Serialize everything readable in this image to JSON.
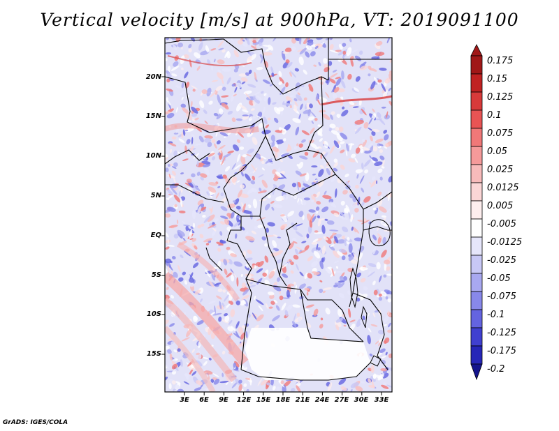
{
  "title": "Vertical velocity [m/s] at 900hPa, VT: 2019091100",
  "credit": "GrADS: IGES/COLA",
  "lat_labels": [
    "20N",
    "15N",
    "10N",
    "5N",
    "EQ",
    "5S",
    "10S",
    "15S"
  ],
  "lon_labels": [
    "3E",
    "6E",
    "9E",
    "12E",
    "15E",
    "18E",
    "21E",
    "24E",
    "27E",
    "30E",
    "33E"
  ],
  "colorbar": {
    "labels": [
      "0.175",
      "0.15",
      "0.125",
      "0.1",
      "0.075",
      "0.05",
      "0.025",
      "0.0125",
      "0.005",
      "-0.005",
      "-0.0125",
      "-0.025",
      "-0.05",
      "-0.075",
      "-0.1",
      "-0.125",
      "-0.175",
      "-0.2"
    ],
    "colors": [
      "#a01818",
      "#c02222",
      "#d83a3a",
      "#e85454",
      "#f07878",
      "#f59a9a",
      "#f8bbbb",
      "#fbd6d6",
      "#fdeeee",
      "#ffffff",
      "#e6e6fb",
      "#c8c8f6",
      "#a8a8f0",
      "#8888ea",
      "#6464e0",
      "#4040d0",
      "#2626b8",
      "#14148c"
    ],
    "top_color": "#a01818",
    "bottom_color": "#14148c"
  }
}
